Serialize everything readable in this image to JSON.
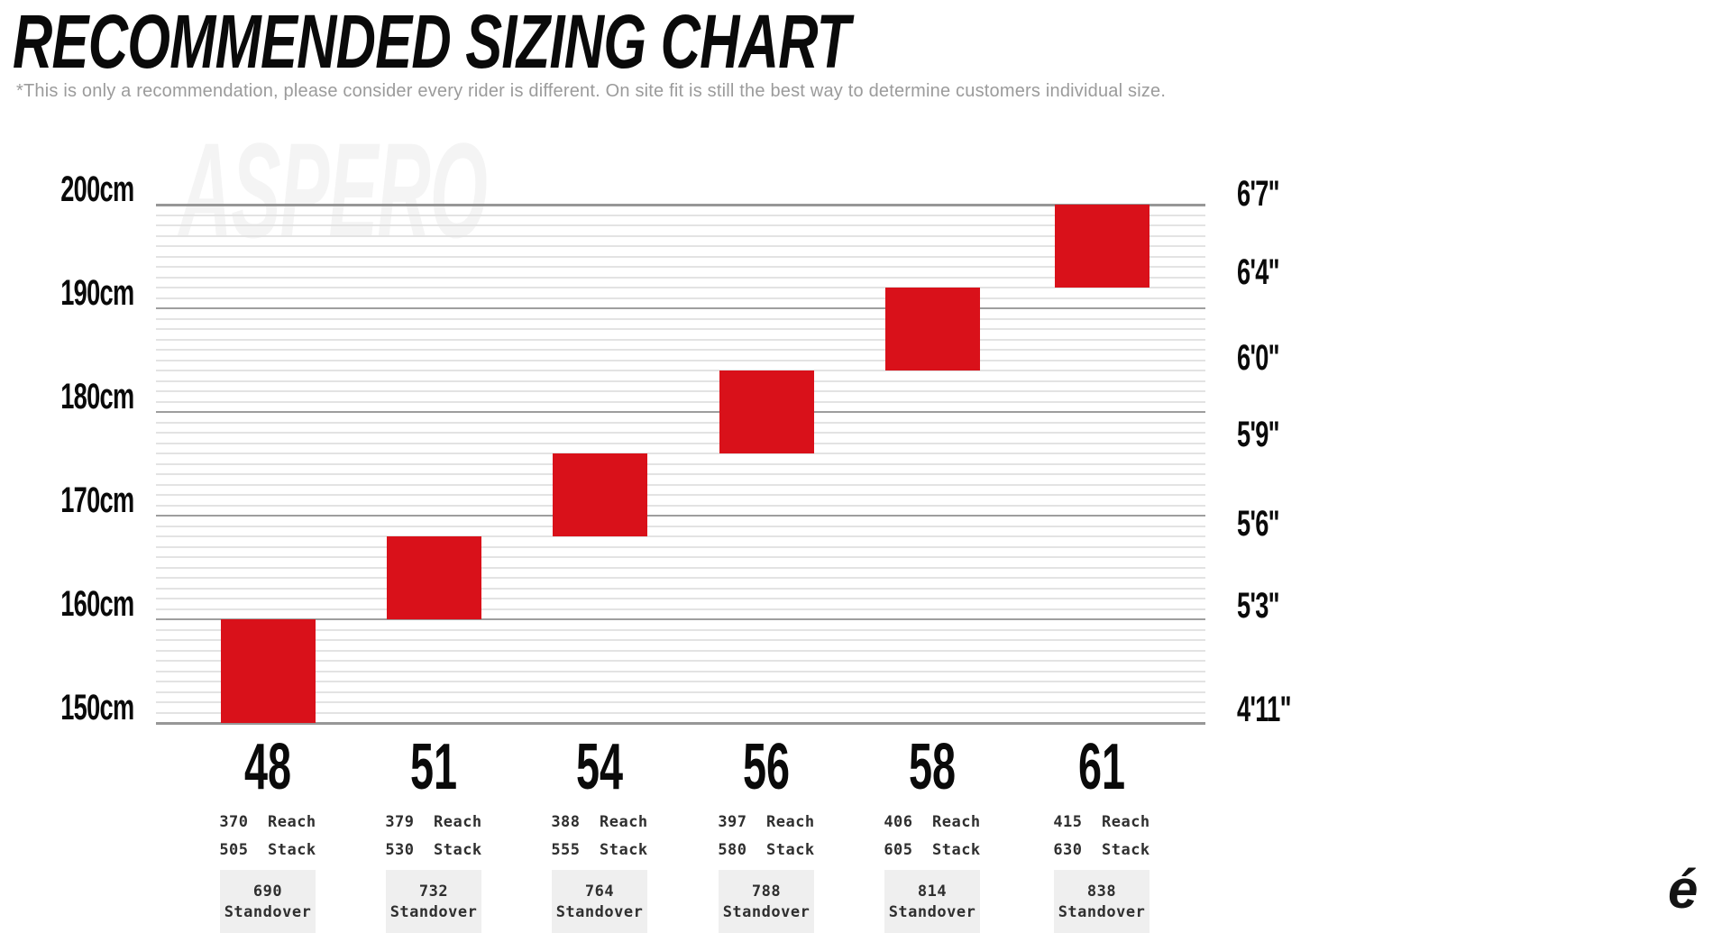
{
  "title": "RECOMMENDED SIZING CHART",
  "subtitle": "*This is only a recommendation, please consider every rider is different. On site fit is still the best way to determine customers individual size.",
  "watermark": "ASPERO",
  "logo_glyph": "é",
  "colors": {
    "bar_red": "#D9111A",
    "major_gridline": "#9e9e9e",
    "minor_gridline": "#e3e3e3",
    "subtitle_gray": "#9b9b9b",
    "standover_box_bg": "#efefef",
    "detail_text": "#2f2f2f",
    "axis_text": "#000000"
  },
  "chart_data": {
    "type": "bar",
    "title": "RECOMMENDED SIZING CHART",
    "orientation": "vertical-range-columns",
    "grid": true,
    "legend": "none",
    "y_axis_left": {
      "unit": "cm",
      "min": 150,
      "max": 200,
      "major_step": 10,
      "minor_step": 1,
      "tick_labels": [
        "200cm",
        "190cm",
        "180cm",
        "170cm",
        "160cm",
        "150cm"
      ]
    },
    "y_axis_right": {
      "unit": "feet-inches",
      "tick_labels": [
        "6'7\"",
        "6'4\"",
        "6'0\"",
        "5'9\"",
        "5'6\"",
        "5'3\"",
        "4'11\""
      ]
    },
    "categories": [
      "48",
      "51",
      "54",
      "56",
      "58",
      "61"
    ],
    "series": [
      {
        "size": "48",
        "height_min_cm": 150,
        "height_max_cm": 160,
        "reach": "370",
        "stack": "505",
        "standover": "690"
      },
      {
        "size": "51",
        "height_min_cm": 160,
        "height_max_cm": 168,
        "reach": "379",
        "stack": "530",
        "standover": "732"
      },
      {
        "size": "54",
        "height_min_cm": 168,
        "height_max_cm": 176,
        "reach": "388",
        "stack": "555",
        "standover": "764"
      },
      {
        "size": "56",
        "height_min_cm": 176,
        "height_max_cm": 184,
        "reach": "397",
        "stack": "580",
        "standover": "788"
      },
      {
        "size": "58",
        "height_min_cm": 184,
        "height_max_cm": 192,
        "reach": "406",
        "stack": "605",
        "standover": "814"
      },
      {
        "size": "61",
        "height_min_cm": 192,
        "height_max_cm": 200,
        "reach": "415",
        "stack": "630",
        "standover": "838"
      }
    ],
    "labels": {
      "reach": "Reach",
      "stack": "Stack",
      "standover": "Standover"
    }
  }
}
